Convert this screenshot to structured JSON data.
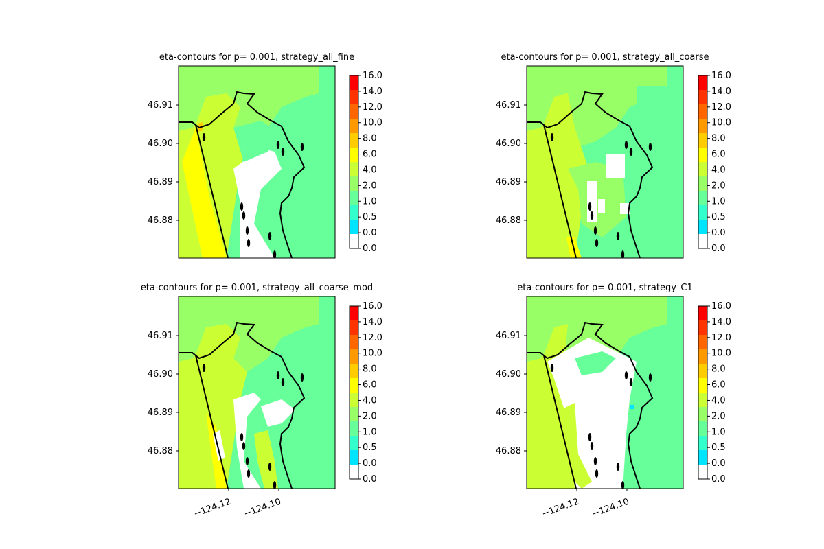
{
  "chart_data": [
    {
      "type": "heatmap",
      "title": "eta-contours for p= 0.001, strategy_all_fine",
      "yticks": [
        "46.91",
        "46.90",
        "46.89",
        "46.88"
      ],
      "xticks": [],
      "colorbar": {
        "labels": [
          "0.0",
          "0.0",
          "0.5",
          "1.0",
          "2.0",
          "4.0",
          "6.0",
          "8.0",
          "10.0",
          "12.0",
          "14.0",
          "16.0"
        ],
        "colors": [
          "#ffffff",
          "#00e5ff",
          "#33ffcc",
          "#66ff99",
          "#99ff66",
          "#ccff33",
          "#ffff00",
          "#ffcc00",
          "#ff9900",
          "#ff6600",
          "#ff3300",
          "#ff0000"
        ]
      }
    },
    {
      "type": "heatmap",
      "title": "eta-contours for p= 0.001, strategy_all_coarse",
      "yticks": [
        "46.91",
        "46.90",
        "46.89",
        "46.88"
      ],
      "xticks": [],
      "colorbar": {
        "labels": [
          "0.0",
          "0.0",
          "0.5",
          "1.0",
          "2.0",
          "4.0",
          "6.0",
          "8.0",
          "10.0",
          "12.0",
          "14.0",
          "16.0"
        ],
        "colors": [
          "#ffffff",
          "#00e5ff",
          "#33ffcc",
          "#66ff99",
          "#99ff66",
          "#ccff33",
          "#ffff00",
          "#ffcc00",
          "#ff9900",
          "#ff6600",
          "#ff3300",
          "#ff0000"
        ]
      }
    },
    {
      "type": "heatmap",
      "title": "eta-contours for p= 0.001, strategy_all_coarse_mod",
      "yticks": [
        "46.91",
        "46.90",
        "46.89",
        "46.88"
      ],
      "xticks": [
        "−124.12",
        "−124.10"
      ],
      "colorbar": {
        "labels": [
          "0.0",
          "0.0",
          "0.5",
          "1.0",
          "2.0",
          "4.0",
          "6.0",
          "8.0",
          "10.0",
          "12.0",
          "14.0",
          "16.0"
        ],
        "colors": [
          "#ffffff",
          "#00e5ff",
          "#33ffcc",
          "#66ff99",
          "#99ff66",
          "#ccff33",
          "#ffff00",
          "#ffcc00",
          "#ff9900",
          "#ff6600",
          "#ff3300",
          "#ff0000"
        ]
      }
    },
    {
      "type": "heatmap",
      "title": "eta-contours for p= 0.001, strategy_C1",
      "yticks": [
        "46.91",
        "46.90",
        "46.89",
        "46.88"
      ],
      "xticks": [
        "−124.12",
        "−124.10"
      ],
      "colorbar": {
        "labels": [
          "0.0",
          "0.0",
          "0.5",
          "1.0",
          "2.0",
          "4.0",
          "6.0",
          "8.0",
          "10.0",
          "12.0",
          "14.0",
          "16.0"
        ],
        "colors": [
          "#ffffff",
          "#00e5ff",
          "#33ffcc",
          "#66ff99",
          "#99ff66",
          "#ccff33",
          "#ffff00",
          "#ffcc00",
          "#ff9900",
          "#ff6600",
          "#ff3300",
          "#ff0000"
        ]
      }
    }
  ]
}
